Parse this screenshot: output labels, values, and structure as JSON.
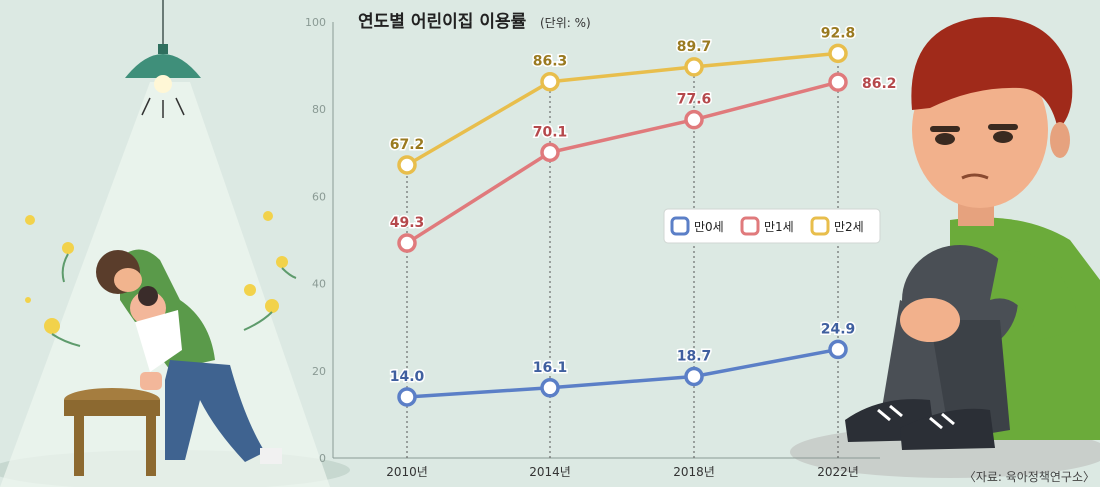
{
  "chart_data": {
    "type": "line",
    "title": "연도별 어린이집 이용률",
    "unit_label": "(단위: %)",
    "categories": [
      "2010년",
      "2014년",
      "2018년",
      "2022년"
    ],
    "ylim": [
      0,
      100
    ],
    "yticks": [
      "0",
      "20",
      "40",
      "60",
      "80",
      "100"
    ],
    "series": [
      {
        "name": "만0세",
        "values": [
          14.0,
          16.1,
          18.7,
          24.9
        ],
        "labels": [
          "14.0",
          "16.1",
          "18.7",
          "24.9"
        ],
        "color": "#5b7fc7"
      },
      {
        "name": "만1세",
        "values": [
          49.3,
          70.1,
          77.6,
          86.2
        ],
        "labels": [
          "49.3",
          "70.1",
          "77.6",
          "86.2"
        ],
        "color": "#e07a7c"
      },
      {
        "name": "만2세",
        "values": [
          67.2,
          86.3,
          89.7,
          92.8
        ],
        "labels": [
          "67.2",
          "86.3",
          "89.7",
          "92.8"
        ],
        "color": "#e8be4c"
      }
    ],
    "grid": false,
    "legend_position": "center-right"
  },
  "source": "〈자료: 육아정책연구소〉",
  "colors": {
    "background": "#dce9e3",
    "axis": "#8a9a94"
  }
}
